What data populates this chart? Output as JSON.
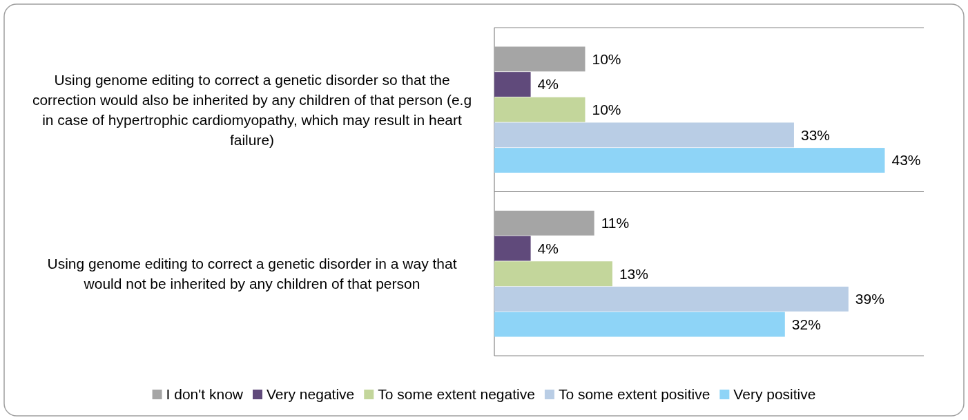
{
  "chart_data": {
    "type": "bar",
    "orientation": "horizontal",
    "categories": [
      "Using genome editing to correct a genetic disorder so that the correction would also be inherited by any children of that person (e.g in case of hypertrophic cardiomyopathy, which may result in heart failure)",
      "Using genome editing to correct a genetic disorder in a way that would not be inherited by any children of that person"
    ],
    "series": [
      {
        "name": "I don't know",
        "color": "#a5a5a5",
        "values": [
          10,
          11
        ],
        "value_labels": [
          "10%",
          "11%"
        ]
      },
      {
        "name": "Very negative",
        "color": "#604a7b",
        "values": [
          4,
          4
        ],
        "value_labels": [
          "4%",
          "4%"
        ]
      },
      {
        "name": "To some extent negative",
        "color": "#c3d69b",
        "values": [
          10,
          13
        ],
        "value_labels": [
          "10%",
          "13%"
        ]
      },
      {
        "name": "To some extent positive",
        "color": "#b9cde5",
        "values": [
          33,
          39
        ],
        "value_labels": [
          "33%",
          "39%"
        ]
      },
      {
        "name": "Very positive",
        "color": "#8ed4f7",
        "values": [
          43,
          32
        ],
        "value_labels": [
          "43%",
          "32%"
        ]
      }
    ],
    "xlim": [
      0,
      47.3
    ],
    "grid": "y",
    "legend": "bottom",
    "tick_labels": "y"
  }
}
